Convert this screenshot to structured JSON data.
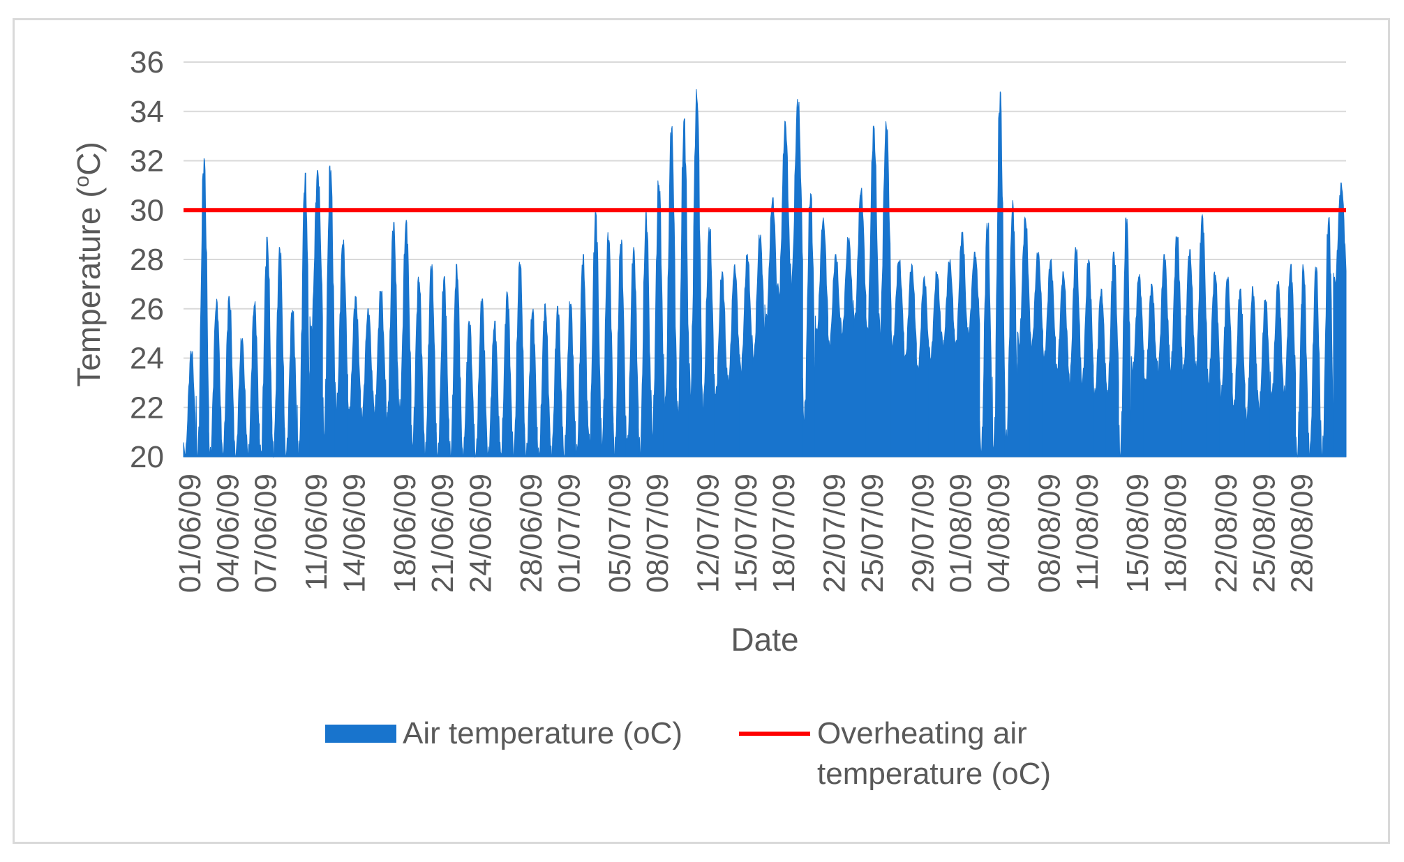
{
  "chart_data": {
    "type": "area",
    "title": "",
    "xlabel": "Date",
    "ylabel_main": "Temperature (",
    "ylabel_sup": "o",
    "ylabel_tail": "C)",
    "ylim": [
      20,
      36
    ],
    "y_ticks": [
      "20",
      "22",
      "24",
      "26",
      "28",
      "30",
      "32",
      "34",
      "36"
    ],
    "x_range": [
      "01/06/09",
      "31/08/09"
    ],
    "grid": "horizontal",
    "legend_position": "bottom",
    "x_tick_labels": [
      "01/06/09",
      "04/06/09",
      "07/06/09",
      "11/06/09",
      "14/06/09",
      "18/06/09",
      "21/06/09",
      "24/06/09",
      "28/06/09",
      "01/07/09",
      "05/07/09",
      "08/07/09",
      "12/07/09",
      "15/07/09",
      "18/07/09",
      "22/07/09",
      "25/07/09",
      "29/07/09",
      "01/08/09",
      "04/08/09",
      "08/08/09",
      "11/08/09",
      "15/08/09",
      "18/08/09",
      "22/08/09",
      "25/08/09",
      "28/08/09"
    ],
    "colors": {
      "air": "#1874cd",
      "overheating": "#ff0000",
      "grid": "#d9d9d9"
    },
    "series": [
      {
        "name": "Air temperature (oC)",
        "kind": "area",
        "daily": [
          {
            "date": "01/06/09",
            "min": 20.0,
            "max": 24.3
          },
          {
            "date": "02/06/09",
            "min": 20.0,
            "max": 32.1
          },
          {
            "date": "03/06/09",
            "min": 20.0,
            "max": 26.4
          },
          {
            "date": "04/06/09",
            "min": 20.0,
            "max": 26.5
          },
          {
            "date": "05/06/09",
            "min": 20.0,
            "max": 24.8
          },
          {
            "date": "06/06/09",
            "min": 20.0,
            "max": 26.3
          },
          {
            "date": "07/06/09",
            "min": 20.0,
            "max": 28.9
          },
          {
            "date": "08/06/09",
            "min": 20.0,
            "max": 28.5
          },
          {
            "date": "09/06/09",
            "min": 20.0,
            "max": 26.0
          },
          {
            "date": "10/06/09",
            "min": 20.0,
            "max": 31.5
          },
          {
            "date": "11/06/09",
            "min": 25.0,
            "max": 31.6
          },
          {
            "date": "12/06/09",
            "min": 21.0,
            "max": 31.8
          },
          {
            "date": "13/06/09",
            "min": 22.0,
            "max": 28.8
          },
          {
            "date": "14/06/09",
            "min": 21.8,
            "max": 26.5
          },
          {
            "date": "15/06/09",
            "min": 21.6,
            "max": 26.0
          },
          {
            "date": "16/06/09",
            "min": 21.8,
            "max": 26.8
          },
          {
            "date": "17/06/09",
            "min": 21.5,
            "max": 29.5
          },
          {
            "date": "18/06/09",
            "min": 21.8,
            "max": 29.6
          },
          {
            "date": "19/06/09",
            "min": 20.5,
            "max": 27.3
          },
          {
            "date": "20/06/09",
            "min": 20.0,
            "max": 27.8
          },
          {
            "date": "21/06/09",
            "min": 20.0,
            "max": 27.3
          },
          {
            "date": "22/06/09",
            "min": 20.0,
            "max": 27.8
          },
          {
            "date": "23/06/09",
            "min": 20.0,
            "max": 25.5
          },
          {
            "date": "24/06/09",
            "min": 20.0,
            "max": 26.4
          },
          {
            "date": "25/06/09",
            "min": 20.0,
            "max": 25.5
          },
          {
            "date": "26/06/09",
            "min": 20.0,
            "max": 26.7
          },
          {
            "date": "27/06/09",
            "min": 20.0,
            "max": 27.9
          },
          {
            "date": "28/06/09",
            "min": 20.0,
            "max": 26.0
          },
          {
            "date": "29/06/09",
            "min": 20.0,
            "max": 26.2
          },
          {
            "date": "30/06/09",
            "min": 20.0,
            "max": 26.1
          },
          {
            "date": "01/07/09",
            "min": 20.0,
            "max": 26.3
          },
          {
            "date": "02/07/09",
            "min": 20.0,
            "max": 28.2
          },
          {
            "date": "03/07/09",
            "min": 20.5,
            "max": 29.9
          },
          {
            "date": "04/07/09",
            "min": 20.5,
            "max": 29.1
          },
          {
            "date": "05/07/09",
            "min": 20.0,
            "max": 28.8
          },
          {
            "date": "06/07/09",
            "min": 20.5,
            "max": 28.5
          },
          {
            "date": "07/07/09",
            "min": 20.0,
            "max": 29.9
          },
          {
            "date": "08/07/09",
            "min": 21.0,
            "max": 31.2
          },
          {
            "date": "09/07/09",
            "min": 22.0,
            "max": 33.4
          },
          {
            "date": "10/07/09",
            "min": 21.5,
            "max": 33.7
          },
          {
            "date": "11/07/09",
            "min": 22.5,
            "max": 34.9
          },
          {
            "date": "12/07/09",
            "min": 22.0,
            "max": 29.3
          },
          {
            "date": "13/07/09",
            "min": 22.5,
            "max": 27.5
          },
          {
            "date": "14/07/09",
            "min": 23.0,
            "max": 27.8
          },
          {
            "date": "15/07/09",
            "min": 23.5,
            "max": 28.2
          },
          {
            "date": "16/07/09",
            "min": 24.0,
            "max": 29.0
          },
          {
            "date": "17/07/09",
            "min": 25.5,
            "max": 30.5
          },
          {
            "date": "18/07/09",
            "min": 26.5,
            "max": 33.6
          },
          {
            "date": "19/07/09",
            "min": 27.0,
            "max": 34.5
          },
          {
            "date": "20/07/09",
            "min": 21.5,
            "max": 30.7
          },
          {
            "date": "21/07/09",
            "min": 25.0,
            "max": 29.7
          },
          {
            "date": "22/07/09",
            "min": 24.5,
            "max": 28.2
          },
          {
            "date": "23/07/09",
            "min": 25.0,
            "max": 28.9
          },
          {
            "date": "24/07/09",
            "min": 25.5,
            "max": 30.9
          },
          {
            "date": "25/07/09",
            "min": 25.0,
            "max": 33.4
          },
          {
            "date": "26/07/09",
            "min": 25.0,
            "max": 33.6
          },
          {
            "date": "27/07/09",
            "min": 24.5,
            "max": 28.0
          },
          {
            "date": "28/07/09",
            "min": 24.0,
            "max": 27.8
          },
          {
            "date": "29/07/09",
            "min": 23.5,
            "max": 27.3
          },
          {
            "date": "30/07/09",
            "min": 24.0,
            "max": 27.5
          },
          {
            "date": "31/07/09",
            "min": 24.5,
            "max": 28.0
          },
          {
            "date": "01/08/09",
            "min": 24.5,
            "max": 29.1
          },
          {
            "date": "02/08/09",
            "min": 25.0,
            "max": 28.3
          },
          {
            "date": "03/08/09",
            "min": 20.0,
            "max": 29.5
          },
          {
            "date": "04/08/09",
            "min": 20.3,
            "max": 34.8
          },
          {
            "date": "05/08/09",
            "min": 20.5,
            "max": 30.4
          },
          {
            "date": "06/08/09",
            "min": 24.5,
            "max": 29.7
          },
          {
            "date": "07/08/09",
            "min": 24.5,
            "max": 28.3
          },
          {
            "date": "08/08/09",
            "min": 24.0,
            "max": 28.0
          },
          {
            "date": "09/08/09",
            "min": 23.5,
            "max": 27.5
          },
          {
            "date": "10/08/09",
            "min": 23.0,
            "max": 28.5
          },
          {
            "date": "11/08/09",
            "min": 23.0,
            "max": 28.0
          },
          {
            "date": "12/08/09",
            "min": 22.5,
            "max": 26.8
          },
          {
            "date": "13/08/09",
            "min": 22.5,
            "max": 28.3
          },
          {
            "date": "14/08/09",
            "min": 20.0,
            "max": 29.7
          },
          {
            "date": "15/08/09",
            "min": 23.5,
            "max": 27.4
          },
          {
            "date": "16/08/09",
            "min": 23.0,
            "max": 27.0
          },
          {
            "date": "17/08/09",
            "min": 23.5,
            "max": 28.2
          },
          {
            "date": "18/08/09",
            "min": 23.5,
            "max": 29.0
          },
          {
            "date": "19/08/09",
            "min": 23.5,
            "max": 28.4
          },
          {
            "date": "20/08/09",
            "min": 23.5,
            "max": 29.8
          },
          {
            "date": "21/08/09",
            "min": 23.0,
            "max": 27.5
          },
          {
            "date": "22/08/09",
            "min": 22.5,
            "max": 27.3
          },
          {
            "date": "23/08/09",
            "min": 22.0,
            "max": 26.8
          },
          {
            "date": "24/08/09",
            "min": 21.5,
            "max": 26.9
          },
          {
            "date": "25/08/09",
            "min": 22.0,
            "max": 26.4
          },
          {
            "date": "26/08/09",
            "min": 22.5,
            "max": 27.1
          },
          {
            "date": "27/08/09",
            "min": 22.5,
            "max": 27.8
          },
          {
            "date": "28/08/09",
            "min": 20.0,
            "max": 27.8
          },
          {
            "date": "29/08/09",
            "min": 20.0,
            "max": 27.7
          },
          {
            "date": "30/08/09",
            "min": 20.0,
            "max": 29.7
          },
          {
            "date": "31/08/09",
            "min": 27.0,
            "max": 31.1
          }
        ]
      },
      {
        "name": "Overheating air temperature (oC)",
        "kind": "line",
        "value": 30
      }
    ]
  },
  "legend": {
    "air_label": "Air temperature (oC)",
    "overheating_line1": "Overheating air",
    "overheating_line2": "temperature (oC)"
  }
}
